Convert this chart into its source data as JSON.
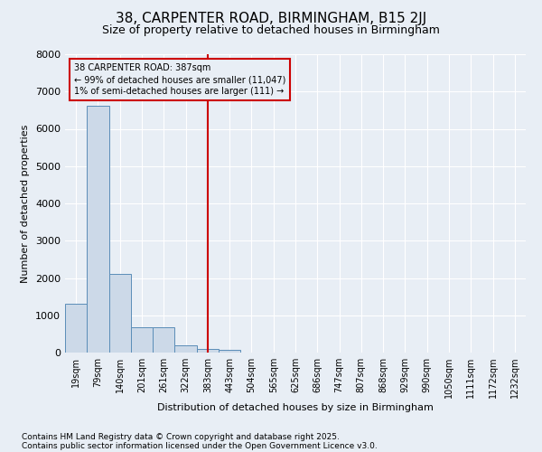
{
  "title1": "38, CARPENTER ROAD, BIRMINGHAM, B15 2JJ",
  "title2": "Size of property relative to detached houses in Birmingham",
  "xlabel": "Distribution of detached houses by size in Birmingham",
  "ylabel": "Number of detached properties",
  "footnote1": "Contains HM Land Registry data © Crown copyright and database right 2025.",
  "footnote2": "Contains public sector information licensed under the Open Government Licence v3.0.",
  "annotation_title": "38 CARPENTER ROAD: 387sqm",
  "annotation_line1": "← 99% of detached houses are smaller (11,047)",
  "annotation_line2": "1% of semi-detached houses are larger (111) →",
  "vline_x_index": 6,
  "categories": [
    "19sqm",
    "79sqm",
    "140sqm",
    "201sqm",
    "261sqm",
    "322sqm",
    "383sqm",
    "443sqm",
    "504sqm",
    "565sqm",
    "625sqm",
    "686sqm",
    "747sqm",
    "807sqm",
    "868sqm",
    "929sqm",
    "990sqm",
    "1050sqm",
    "1111sqm",
    "1172sqm",
    "1232sqm"
  ],
  "values": [
    1320,
    6620,
    2100,
    680,
    680,
    200,
    100,
    75,
    0,
    0,
    0,
    0,
    0,
    0,
    0,
    0,
    0,
    0,
    0,
    0,
    0
  ],
  "bar_color": "#ccd9e8",
  "bar_edge_color": "#5b8db8",
  "vline_color": "#cc0000",
  "box_edge_color": "#cc0000",
  "box_bg_color": "#e8eef5",
  "ylim": [
    0,
    8000
  ],
  "yticks": [
    0,
    1000,
    2000,
    3000,
    4000,
    5000,
    6000,
    7000,
    8000
  ],
  "bg_color": "#e8eef5",
  "grid_color": "#ffffff",
  "title_fontsize": 11,
  "subtitle_fontsize": 9,
  "footnote_fontsize": 6.5,
  "ylabel_fontsize": 8,
  "xlabel_fontsize": 8,
  "tick_fontsize": 7
}
